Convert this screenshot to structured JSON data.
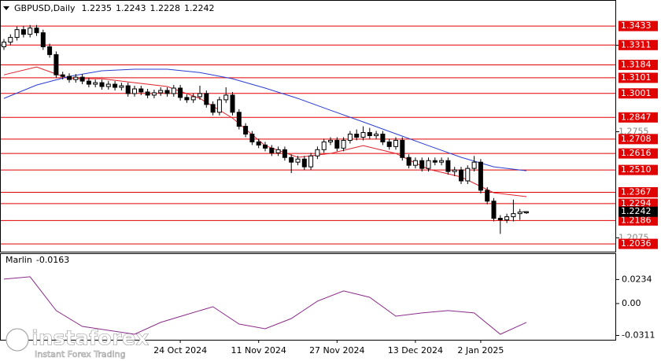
{
  "chart_data": [
    {
      "type": "candlestick",
      "title": "GBPUSD,Daily",
      "open": [
        1.33,
        1.333,
        1.336,
        1.341,
        1.338,
        1.342,
        1.339,
        1.33,
        1.325,
        1.312,
        1.311,
        1.309,
        1.3105,
        1.308,
        1.306,
        1.307,
        1.3045,
        1.306,
        1.304,
        1.305,
        1.3,
        1.303,
        1.301,
        1.299,
        1.3005,
        1.302,
        1.3,
        1.3035,
        1.2975,
        1.296,
        1.298,
        1.3,
        1.293,
        1.288,
        1.296,
        1.299,
        1.288,
        1.279,
        1.274,
        1.269,
        1.267,
        1.265,
        1.262,
        1.264,
        1.259,
        1.256,
        1.258,
        1.253,
        1.26,
        1.264,
        1.269,
        1.27,
        1.265,
        1.27,
        1.274,
        1.272,
        1.275,
        1.273,
        1.274,
        1.269,
        1.266,
        1.27,
        1.259,
        1.254,
        1.257,
        1.252,
        1.257,
        1.256,
        1.257,
        1.25,
        1.251,
        1.244,
        1.252,
        1.256,
        1.238,
        1.231,
        1.22,
        1.219,
        1.221,
        1.223,
        1.2235
      ],
      "high": [
        1.335,
        1.338,
        1.343,
        1.3434,
        1.344,
        1.344,
        1.341,
        1.332,
        1.327,
        1.314,
        1.313,
        1.3125,
        1.3125,
        1.31,
        1.309,
        1.309,
        1.308,
        1.308,
        1.307,
        1.307,
        1.305,
        1.305,
        1.303,
        1.3025,
        1.304,
        1.304,
        1.3055,
        1.3055,
        1.2995,
        1.3,
        1.305,
        1.302,
        1.295,
        1.298,
        1.304,
        1.301,
        1.29,
        1.281,
        1.276,
        1.271,
        1.269,
        1.267,
        1.266,
        1.266,
        1.261,
        1.26,
        1.26,
        1.262,
        1.266,
        1.271,
        1.272,
        1.272,
        1.272,
        1.276,
        1.277,
        1.279,
        1.278,
        1.276,
        1.276,
        1.271,
        1.272,
        1.272,
        1.261,
        1.259,
        1.259,
        1.259,
        1.259,
        1.259,
        1.259,
        1.253,
        1.253,
        1.254,
        1.26,
        1.258,
        1.24,
        1.233,
        1.222,
        1.223,
        1.232,
        1.226,
        1.2243
      ],
      "low": [
        1.328,
        1.331,
        1.334,
        1.336,
        1.336,
        1.337,
        1.328,
        1.323,
        1.31,
        1.309,
        1.307,
        1.307,
        1.306,
        1.304,
        1.304,
        1.3025,
        1.3025,
        1.302,
        1.302,
        1.298,
        1.298,
        1.299,
        1.297,
        1.297,
        1.2985,
        1.298,
        1.298,
        1.2955,
        1.294,
        1.294,
        1.296,
        1.291,
        1.286,
        1.286,
        1.294,
        1.286,
        1.277,
        1.272,
        1.267,
        1.265,
        1.263,
        1.26,
        1.26,
        1.257,
        1.249,
        1.254,
        1.251,
        1.251,
        1.258,
        1.262,
        1.267,
        1.263,
        1.263,
        1.268,
        1.27,
        1.27,
        1.271,
        1.271,
        1.267,
        1.264,
        1.264,
        1.257,
        1.252,
        1.252,
        1.25,
        1.25,
        1.254,
        1.254,
        1.248,
        1.247,
        1.242,
        1.242,
        1.25,
        1.236,
        1.229,
        1.218,
        1.21,
        1.217,
        1.218,
        1.219,
        1.2228
      ],
      "close": [
        1.333,
        1.336,
        1.341,
        1.338,
        1.342,
        1.339,
        1.33,
        1.325,
        1.312,
        1.311,
        1.309,
        1.3105,
        1.308,
        1.306,
        1.307,
        1.3045,
        1.306,
        1.304,
        1.305,
        1.3,
        1.303,
        1.301,
        1.299,
        1.3005,
        1.302,
        1.3,
        1.3035,
        1.2975,
        1.296,
        1.298,
        1.3,
        1.293,
        1.288,
        1.296,
        1.299,
        1.288,
        1.279,
        1.274,
        1.269,
        1.267,
        1.265,
        1.262,
        1.264,
        1.259,
        1.256,
        1.258,
        1.253,
        1.26,
        1.264,
        1.269,
        1.27,
        1.265,
        1.27,
        1.274,
        1.272,
        1.275,
        1.273,
        1.274,
        1.269,
        1.266,
        1.27,
        1.259,
        1.254,
        1.257,
        1.252,
        1.257,
        1.256,
        1.257,
        1.25,
        1.251,
        1.244,
        1.252,
        1.256,
        1.238,
        1.231,
        1.22,
        1.219,
        1.221,
        1.223,
        1.224,
        1.2242
      ],
      "ylim": [
        1.1986,
        1.36
      ],
      "yticks": [
        {
          "value": 1.331,
          "label": "1.3310"
        },
        1.2755,
        1.2075
      ],
      "levels": [
        1.3433,
        1.3311,
        1.3184,
        1.3101,
        1.3001,
        1.2847,
        1.2708,
        1.2616,
        {
          "value": 1.251,
          "label": "1.2510"
        },
        1.2367,
        1.2294,
        1.2186,
        1.2036
      ],
      "levels_color": "#e00000",
      "lines": [
        {
          "color": "#e0202a",
          "x": [
            0,
            5,
            10,
            15,
            20,
            25,
            30,
            35,
            40,
            45,
            50,
            55,
            60,
            65,
            70,
            75,
            80
          ],
          "values": [
            1.312,
            1.3171,
            1.3095,
            1.3095,
            1.307,
            1.3045,
            1.2969,
            1.2843,
            1.2666,
            1.2591,
            1.2616,
            1.2666,
            1.2616,
            1.2515,
            1.2465,
            1.2364,
            1.2339
          ]
        },
        {
          "color": "#2a3fd0",
          "x": [
            0,
            5,
            10,
            15,
            20,
            25,
            30,
            35,
            40,
            45,
            50,
            55,
            60,
            65,
            70,
            75,
            80
          ],
          "values": [
            1.2969,
            1.3055,
            1.311,
            1.3146,
            1.3156,
            1.3156,
            1.3135,
            1.3095,
            1.3035,
            1.2969,
            1.2893,
            1.2818,
            1.2742,
            1.2666,
            1.2591,
            1.253,
            1.2505
          ]
        }
      ],
      "xticks": [
        {
          "value": 27,
          "label": "24 Oct 2024"
        },
        {
          "value": 39,
          "label": "11 Nov 2024"
        },
        {
          "value": 51,
          "label": "27 Nov 2024"
        },
        {
          "value": 63,
          "label": "13 Dec 2024"
        },
        {
          "value": 73,
          "label": "2 Jan 2025"
        }
      ]
    },
    {
      "type": "line",
      "title": "Marlin",
      "current": -0.0163,
      "color": "#8a2c8a",
      "x": [
        0,
        4,
        8,
        12,
        16,
        20,
        24,
        28,
        32,
        36,
        40,
        44,
        48,
        52,
        56,
        60,
        64,
        68,
        72,
        76,
        80
      ],
      "values": [
        0.0238,
        0.0261,
        -0.0069,
        -0.0223,
        -0.0261,
        -0.0299,
        -0.0184,
        -0.0107,
        -0.0031,
        -0.02,
        -0.0246,
        -0.0146,
        0.0023,
        0.0123,
        0.0061,
        -0.0123,
        -0.0092,
        -0.0069,
        -0.0092,
        -0.0299,
        -0.0184
      ],
      "ylim": [
        -0.0353,
        0.049
      ],
      "yticks": [
        0.0234,
        {
          "value": 0,
          "label": "0.00"
        },
        -0.0311
      ]
    }
  ],
  "watermark": {
    "brand": "instaforex",
    "tagline": "Instant Forex Trading"
  }
}
